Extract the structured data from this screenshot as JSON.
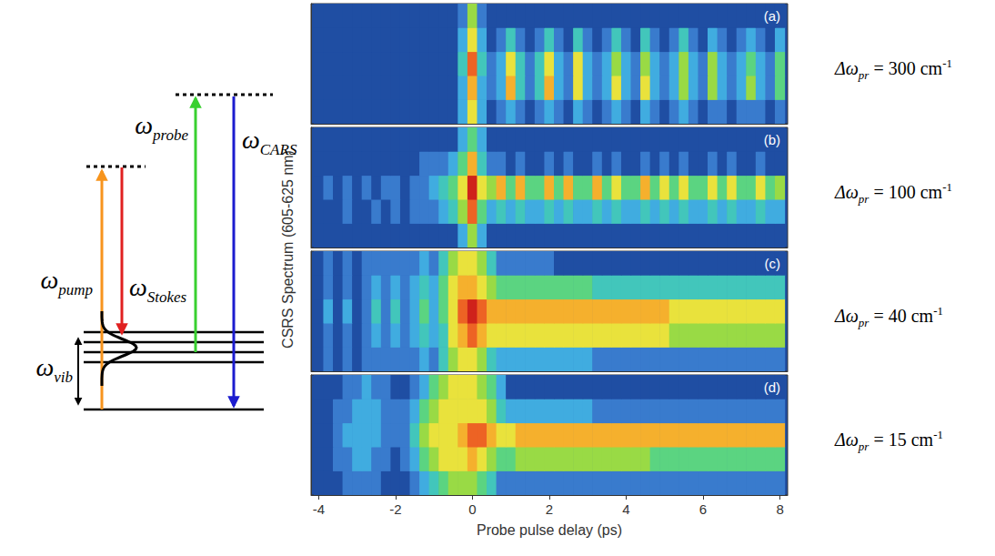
{
  "diagram": {
    "transitions": [
      {
        "symbol": "ω",
        "subscript": "pump"
      },
      {
        "symbol": "ω",
        "subscript": "Stokes"
      },
      {
        "symbol": "ω",
        "subscript": "probe"
      },
      {
        "symbol": "ω",
        "subscript": "CARS"
      }
    ],
    "vibration": {
      "symbol": "ω",
      "subscript": "vib"
    }
  },
  "ylabel": "CSRS Spectrum (605-625 nm)",
  "chart_data": [
    {
      "type": "heatmap",
      "title": "(a)",
      "xlim": [
        -4.2,
        8.2
      ],
      "ylim": [
        605,
        625
      ],
      "tick_labels": false,
      "grid": false,
      "zlim": [
        0,
        9
      ],
      "annotation": {
        "symbol": "Δω",
        "subscript": "pr",
        "relation": "=",
        "value": 300,
        "unit": "cm",
        "unit_exponent": -1
      },
      "x": [
        -4,
        -3.75,
        -3.5,
        -3.25,
        -3,
        -2.75,
        -2.5,
        -2.25,
        -2,
        -1.75,
        -1.5,
        -1.25,
        -1,
        -0.75,
        -0.5,
        -0.25,
        0,
        0.25,
        0.5,
        0.75,
        1,
        1.25,
        1.5,
        1.75,
        2,
        2.25,
        2.5,
        2.75,
        3,
        3.25,
        3.5,
        3.75,
        4,
        4.25,
        4.5,
        4.75,
        5,
        5.25,
        5.5,
        5.75,
        6,
        6.25,
        6.5,
        6.75,
        7,
        7.25,
        7.5,
        7.75,
        8
      ],
      "y": [
        607,
        611,
        615,
        619,
        623
      ],
      "cells": [
        [
          0,
          0,
          0,
          0,
          0,
          0,
          0,
          0,
          0,
          0,
          0,
          0,
          0,
          0,
          0,
          2,
          6,
          2,
          0,
          1,
          2,
          1,
          0,
          1,
          2,
          1,
          0,
          2,
          1,
          0,
          1,
          2,
          1,
          0,
          2,
          1,
          0,
          1,
          2,
          1,
          0,
          1,
          1,
          0,
          1,
          1,
          1,
          0,
          1
        ],
        [
          0,
          0,
          0,
          0,
          0,
          0,
          0,
          0,
          0,
          0,
          0,
          0,
          0,
          0,
          0,
          2,
          7,
          2,
          1,
          2,
          7,
          3,
          1,
          3,
          7,
          2,
          1,
          6,
          2,
          1,
          2,
          6,
          2,
          1,
          6,
          2,
          1,
          2,
          5,
          2,
          1,
          5,
          2,
          1,
          2,
          5,
          2,
          1,
          4
        ],
        [
          0,
          0,
          0,
          0,
          0,
          0,
          0,
          0,
          0,
          0,
          0,
          0,
          0,
          0,
          0,
          3,
          8,
          3,
          1,
          2,
          6,
          3,
          1,
          3,
          6,
          2,
          1,
          6,
          2,
          1,
          2,
          5,
          2,
          1,
          5,
          2,
          1,
          2,
          5,
          2,
          1,
          5,
          2,
          1,
          2,
          4,
          2,
          1,
          4
        ],
        [
          0,
          0,
          0,
          0,
          0,
          0,
          0,
          0,
          0,
          0,
          0,
          0,
          0,
          0,
          0,
          2,
          6,
          2,
          0,
          1,
          3,
          1,
          0,
          1,
          3,
          1,
          0,
          3,
          1,
          0,
          1,
          3,
          1,
          0,
          3,
          1,
          0,
          1,
          3,
          1,
          0,
          2,
          1,
          0,
          1,
          2,
          1,
          0,
          2
        ],
        [
          0,
          0,
          0,
          0,
          0,
          0,
          0,
          0,
          0,
          0,
          0,
          0,
          0,
          0,
          0,
          1,
          5,
          1,
          0,
          0,
          0,
          0,
          0,
          0,
          0,
          0,
          0,
          0,
          0,
          0,
          0,
          0,
          0,
          0,
          0,
          0,
          0,
          0,
          0,
          0,
          0,
          0,
          0,
          0,
          0,
          0,
          0,
          0,
          0
        ]
      ]
    },
    {
      "type": "heatmap",
      "title": "(b)",
      "xlim": [
        -4.2,
        8.2
      ],
      "ylim": [
        605,
        625
      ],
      "tick_labels": false,
      "grid": false,
      "zlim": [
        0,
        9
      ],
      "annotation": {
        "symbol": "Δω",
        "subscript": "pr",
        "relation": "=",
        "value": 100,
        "unit": "cm",
        "unit_exponent": -1
      },
      "x": [
        -4,
        -3.75,
        -3.5,
        -3.25,
        -3,
        -2.75,
        -2.5,
        -2.25,
        -2,
        -1.75,
        -1.5,
        -1.25,
        -1,
        -0.75,
        -0.5,
        -0.25,
        0,
        0.25,
        0.5,
        0.75,
        1,
        1.25,
        1.5,
        1.75,
        2,
        2.25,
        2.5,
        2.75,
        3,
        3.25,
        3.5,
        3.75,
        4,
        4.25,
        4.5,
        4.75,
        5,
        5.25,
        5.5,
        5.75,
        6,
        6.25,
        6.5,
        6.75,
        7,
        7.25,
        7.5,
        7.75,
        8
      ],
      "y": [
        607,
        611,
        615,
        619,
        623
      ],
      "cells": [
        [
          0,
          0,
          0,
          0,
          0,
          0,
          0,
          0,
          0,
          0,
          0,
          0,
          0,
          0,
          0,
          2,
          5,
          2,
          0,
          0,
          0,
          0,
          0,
          0,
          0,
          0,
          0,
          0,
          0,
          0,
          0,
          0,
          0,
          0,
          0,
          0,
          0,
          0,
          0,
          0,
          0,
          0,
          0,
          0,
          0,
          0,
          0,
          0,
          0
        ],
        [
          0,
          0,
          0,
          1,
          0,
          0,
          1,
          0,
          1,
          0,
          1,
          1,
          1,
          2,
          3,
          5,
          8,
          4,
          2,
          3,
          2,
          3,
          2,
          2,
          3,
          2,
          3,
          2,
          2,
          3,
          2,
          3,
          2,
          2,
          3,
          2,
          3,
          2,
          3,
          2,
          2,
          3,
          2,
          3,
          2,
          2,
          3,
          2,
          2
        ],
        [
          0,
          1,
          0,
          1,
          0,
          1,
          0,
          1,
          1,
          0,
          1,
          1,
          2,
          3,
          4,
          6,
          9,
          6,
          5,
          7,
          4,
          7,
          4,
          4,
          7,
          4,
          7,
          4,
          4,
          7,
          4,
          6,
          4,
          4,
          7,
          4,
          6,
          4,
          6,
          4,
          4,
          6,
          4,
          6,
          4,
          4,
          6,
          4,
          5
        ],
        [
          0,
          0,
          0,
          0,
          0,
          0,
          0,
          0,
          0,
          0,
          0,
          1,
          1,
          1,
          2,
          4,
          7,
          3,
          1,
          1,
          0,
          1,
          0,
          0,
          1,
          0,
          1,
          0,
          0,
          1,
          0,
          1,
          0,
          0,
          1,
          0,
          1,
          0,
          1,
          0,
          0,
          1,
          0,
          1,
          0,
          0,
          1,
          0,
          0
        ],
        [
          0,
          0,
          0,
          0,
          0,
          0,
          0,
          0,
          0,
          0,
          0,
          0,
          0,
          0,
          0,
          2,
          4,
          2,
          0,
          0,
          0,
          0,
          0,
          0,
          0,
          0,
          0,
          0,
          0,
          0,
          0,
          0,
          0,
          0,
          0,
          0,
          0,
          0,
          0,
          0,
          0,
          0,
          0,
          0,
          0,
          0,
          0,
          0,
          0
        ]
      ]
    },
    {
      "type": "heatmap",
      "title": "(c)",
      "xlim": [
        -4.2,
        8.2
      ],
      "ylim": [
        605,
        625
      ],
      "tick_labels": false,
      "grid": false,
      "zlim": [
        0,
        9
      ],
      "annotation": {
        "symbol": "Δω",
        "subscript": "pr",
        "relation": "=",
        "value": 40,
        "unit": "cm",
        "unit_exponent": -1
      },
      "x": [
        -4,
        -3.75,
        -3.5,
        -3.25,
        -3,
        -2.75,
        -2.5,
        -2.25,
        -2,
        -1.75,
        -1.5,
        -1.25,
        -1,
        -0.75,
        -0.5,
        -0.25,
        0,
        0.25,
        0.5,
        0.75,
        1,
        1.25,
        1.5,
        1.75,
        2,
        2.25,
        2.5,
        2.75,
        3,
        3.25,
        3.5,
        3.75,
        4,
        4.25,
        4.5,
        4.75,
        5,
        5.25,
        5.5,
        5.75,
        6,
        6.25,
        6.5,
        6.75,
        7,
        7.25,
        7.5,
        7.75,
        8
      ],
      "y": [
        607,
        611,
        615,
        619,
        623
      ],
      "cells": [
        [
          0,
          1,
          0,
          1,
          0,
          1,
          1,
          1,
          1,
          1,
          1,
          2,
          1,
          3,
          5,
          6,
          6,
          5,
          3,
          2,
          2,
          2,
          2,
          2,
          2,
          2,
          2,
          2,
          2,
          1,
          1,
          1,
          1,
          1,
          1,
          1,
          1,
          1,
          1,
          1,
          1,
          1,
          1,
          1,
          1,
          1,
          1,
          1,
          1
        ],
        [
          0,
          1,
          0,
          1,
          0,
          1,
          2,
          1,
          2,
          1,
          2,
          3,
          2,
          3,
          6,
          7,
          8,
          7,
          6,
          6,
          6,
          6,
          6,
          6,
          6,
          6,
          6,
          6,
          6,
          6,
          6,
          6,
          6,
          6,
          6,
          6,
          6,
          5,
          5,
          5,
          5,
          5,
          5,
          5,
          5,
          5,
          5,
          5,
          5
        ],
        [
          0,
          2,
          0,
          2,
          0,
          1,
          3,
          1,
          3,
          1,
          2,
          4,
          2,
          4,
          6,
          8,
          9,
          8,
          7,
          7,
          7,
          7,
          7,
          7,
          7,
          7,
          7,
          7,
          7,
          7,
          7,
          7,
          7,
          7,
          7,
          7,
          7,
          6,
          6,
          6,
          6,
          6,
          6,
          6,
          6,
          6,
          6,
          6,
          6
        ],
        [
          0,
          1,
          0,
          1,
          0,
          1,
          2,
          1,
          2,
          1,
          2,
          3,
          2,
          4,
          6,
          7,
          7,
          6,
          5,
          4,
          4,
          4,
          4,
          4,
          4,
          4,
          4,
          4,
          4,
          3,
          3,
          3,
          3,
          3,
          3,
          3,
          3,
          3,
          3,
          3,
          3,
          3,
          3,
          3,
          3,
          3,
          3,
          3,
          3
        ],
        [
          0,
          1,
          0,
          1,
          0,
          1,
          1,
          1,
          1,
          1,
          1,
          2,
          1,
          3,
          5,
          6,
          6,
          5,
          3,
          1,
          1,
          1,
          1,
          1,
          1,
          0,
          0,
          0,
          0,
          0,
          0,
          0,
          0,
          0,
          0,
          0,
          0,
          0,
          0,
          0,
          0,
          0,
          0,
          0,
          0,
          0,
          0,
          0,
          0
        ]
      ]
    },
    {
      "type": "heatmap",
      "title": "(d)",
      "xlim": [
        -4.2,
        8.2
      ],
      "xticks": [
        -4,
        -2,
        0,
        2,
        4,
        6,
        8
      ],
      "xlabel": "Probe pulse delay (ps)",
      "ylim": [
        605,
        625
      ],
      "tick_labels": "x",
      "grid": false,
      "zlim": [
        0,
        9
      ],
      "annotation": {
        "symbol": "Δω",
        "subscript": "pr",
        "relation": "=",
        "value": 15,
        "unit": "cm",
        "unit_exponent": -1
      },
      "x": [
        -4,
        -3.75,
        -3.5,
        -3.25,
        -3,
        -2.75,
        -2.5,
        -2.25,
        -2,
        -1.75,
        -1.5,
        -1.25,
        -1,
        -0.75,
        -0.5,
        -0.25,
        0,
        0.25,
        0.5,
        0.75,
        1,
        1.25,
        1.5,
        1.75,
        2,
        2.25,
        2.5,
        2.75,
        3,
        3.25,
        3.5,
        3.75,
        4,
        4.25,
        4.5,
        4.75,
        5,
        5.25,
        5.5,
        5.75,
        6,
        6.25,
        6.5,
        6.75,
        7,
        7.25,
        7.5,
        7.75,
        8
      ],
      "y": [
        607,
        611,
        615,
        619,
        623
      ],
      "cells": [
        [
          0,
          0,
          0,
          1,
          1,
          1,
          1,
          0,
          0,
          0,
          1,
          2,
          3,
          4,
          5,
          5,
          5,
          4,
          3,
          1,
          1,
          1,
          1,
          1,
          1,
          1,
          1,
          1,
          1,
          1,
          1,
          1,
          1,
          1,
          1,
          1,
          1,
          1,
          1,
          1,
          1,
          1,
          1,
          1,
          1,
          1,
          1,
          1,
          1
        ],
        [
          0,
          0,
          1,
          1,
          2,
          2,
          1,
          1,
          0,
          1,
          2,
          4,
          5,
          6,
          6,
          6,
          7,
          6,
          5,
          4,
          4,
          5,
          5,
          5,
          5,
          5,
          5,
          5,
          5,
          5,
          5,
          5,
          5,
          5,
          5,
          4,
          4,
          4,
          4,
          4,
          4,
          4,
          4,
          4,
          4,
          4,
          4,
          4,
          4
        ],
        [
          0,
          0,
          1,
          2,
          2,
          2,
          2,
          1,
          1,
          1,
          3,
          5,
          6,
          6,
          6,
          7,
          8,
          8,
          7,
          6,
          6,
          7,
          7,
          7,
          7,
          7,
          7,
          7,
          7,
          7,
          7,
          7,
          7,
          7,
          7,
          7,
          7,
          7,
          7,
          7,
          7,
          7,
          7,
          7,
          7,
          7,
          7,
          7,
          7
        ],
        [
          0,
          0,
          1,
          1,
          2,
          2,
          2,
          1,
          1,
          1,
          2,
          4,
          5,
          6,
          6,
          6,
          6,
          6,
          5,
          3,
          2,
          2,
          2,
          2,
          2,
          2,
          2,
          2,
          2,
          1,
          1,
          1,
          1,
          1,
          1,
          1,
          1,
          1,
          1,
          1,
          1,
          1,
          1,
          1,
          1,
          1,
          1,
          1,
          1
        ],
        [
          0,
          0,
          0,
          1,
          1,
          2,
          1,
          1,
          0,
          0,
          1,
          2,
          4,
          5,
          6,
          6,
          6,
          5,
          4,
          2,
          0,
          0,
          0,
          0,
          0,
          0,
          0,
          0,
          0,
          0,
          0,
          0,
          0,
          0,
          0,
          0,
          0,
          0,
          0,
          0,
          0,
          0,
          0,
          0,
          0,
          0,
          0,
          0,
          0
        ]
      ]
    }
  ]
}
